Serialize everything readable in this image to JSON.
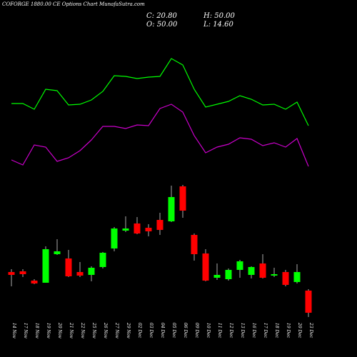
{
  "chart_data": {
    "type": "candlestick",
    "title": "COFORGE 1880.00 CE Options Chart MunafaSutra.com",
    "info": {
      "close": "C: 20.80",
      "high": "H: 50.00",
      "open": "O: 50.00",
      "low": "L: 14.60"
    },
    "categories": [
      "14 Nov",
      "17 Nov",
      "18 Nov",
      "19 Nov",
      "20 Nov",
      "21 Nov",
      "22 Nov",
      "25 Nov",
      "26 Nov",
      "27 Nov",
      "29 Nov",
      "02 Dec",
      "03 Dec",
      "04 Dec",
      "05 Dec",
      "06 Dec",
      "09 Dec",
      "10 Dec",
      "11 Dec",
      "12 Dec",
      "13 Dec",
      "16 Dec",
      "17 Dec",
      "18 Dec",
      "19 Dec",
      "20 Dec",
      "23 Dec"
    ],
    "open": [
      119,
      120,
      107,
      104,
      144,
      138,
      119,
      115,
      126,
      152,
      177,
      187,
      181,
      192,
      190,
      239,
      171,
      145,
      111,
      109,
      122,
      115,
      131,
      114,
      119,
      105,
      93
    ],
    "close": [
      115,
      116,
      103,
      151,
      148,
      113,
      114,
      125,
      146,
      180,
      180,
      173,
      176,
      178,
      224,
      205,
      144,
      107,
      115,
      122,
      134,
      126,
      111,
      116,
      101,
      119,
      62
    ],
    "high": [
      123,
      123,
      109,
      155,
      165,
      150,
      133,
      127,
      147,
      182,
      197,
      196,
      186,
      202,
      240,
      241,
      173,
      151,
      131,
      124,
      136,
      127,
      144,
      125,
      122,
      130,
      95
    ],
    "low": [
      99,
      112,
      102,
      104,
      143,
      112,
      112,
      106,
      124,
      148,
      175,
      172,
      169,
      171,
      189,
      195,
      135,
      106,
      108,
      107,
      111,
      110,
      110,
      112,
      99,
      103,
      56
    ],
    "up_color": "#00ff00",
    "down_color": "#ff0000",
    "lines": [
      {
        "color": "#00ff00",
        "values": [
          355,
          355,
          347,
          375,
          373,
          353,
          354,
          360,
          372,
          394,
          393,
          390,
          392,
          393,
          418,
          409,
          375,
          350,
          354,
          358,
          366,
          361,
          353,
          354,
          347,
          357,
          324
        ]
      },
      {
        "color": "#cc00cc",
        "values": [
          276,
          269,
          297,
          294,
          274,
          279,
          289,
          304,
          323,
          323,
          320,
          325,
          324,
          348,
          354,
          343,
          310,
          286,
          294,
          298,
          307,
          305,
          296,
          300,
          294,
          306,
          267
        ]
      }
    ]
  }
}
